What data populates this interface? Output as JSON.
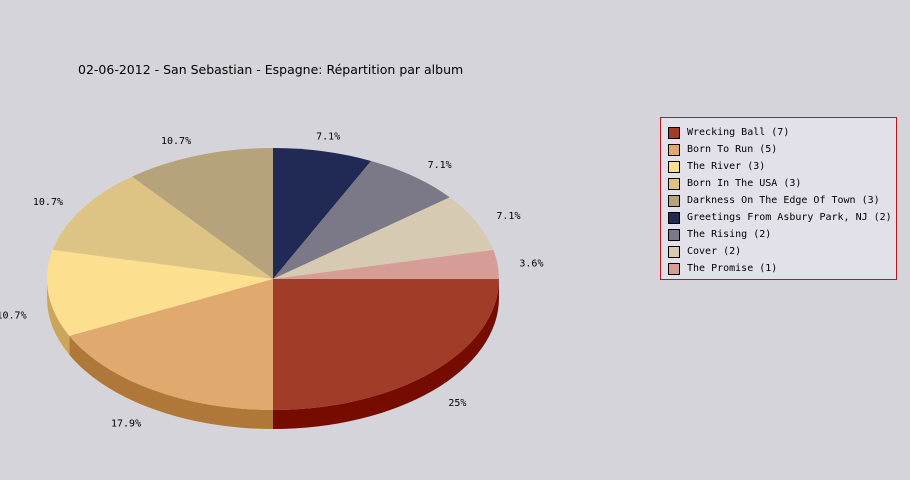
{
  "chart_data": {
    "type": "pie",
    "title": "02-06-2012 - San Sebastian - Espagne:  Répartition par album",
    "legend_position": "right",
    "slices": [
      {
        "label": "Wrecking Ball (7)",
        "value": 7,
        "percent_label": "25%",
        "color": "#a03c28",
        "side_color": "#760c00"
      },
      {
        "label": "Born To Run (5)",
        "value": 5,
        "percent_label": "17.9%",
        "color": "#e0a96e",
        "side_color": "#b07838"
      },
      {
        "label": "The River (3)",
        "value": 3,
        "percent_label": "10.7%",
        "color": "#fddf90",
        "side_color": "#cba65a"
      },
      {
        "label": "Born In The USA (3)",
        "value": 3,
        "percent_label": "10.7%",
        "color": "#dec484",
        "side_color": "#ab9050"
      },
      {
        "label": "Darkness On The Edge Of Town (3)",
        "value": 3,
        "percent_label": "10.7%",
        "color": "#b6a37b",
        "side_color": "#85744c"
      },
      {
        "label": "Greetings From Asbury Park, NJ (2)",
        "value": 2,
        "percent_label": "7.1%",
        "color": "#212a55",
        "side_color": "#10163a"
      },
      {
        "label": "The Rising (2)",
        "value": 2,
        "percent_label": "7.1%",
        "color": "#7b7987",
        "side_color": "#55535f"
      },
      {
        "label": "Cover (2)",
        "value": 2,
        "percent_label": "7.1%",
        "color": "#d6cbb2",
        "side_color": "#a89c82"
      },
      {
        "label": "The Promise (1)",
        "value": 1,
        "percent_label": "3.6%",
        "color": "#d69c96",
        "side_color": "#a86c66"
      }
    ]
  }
}
